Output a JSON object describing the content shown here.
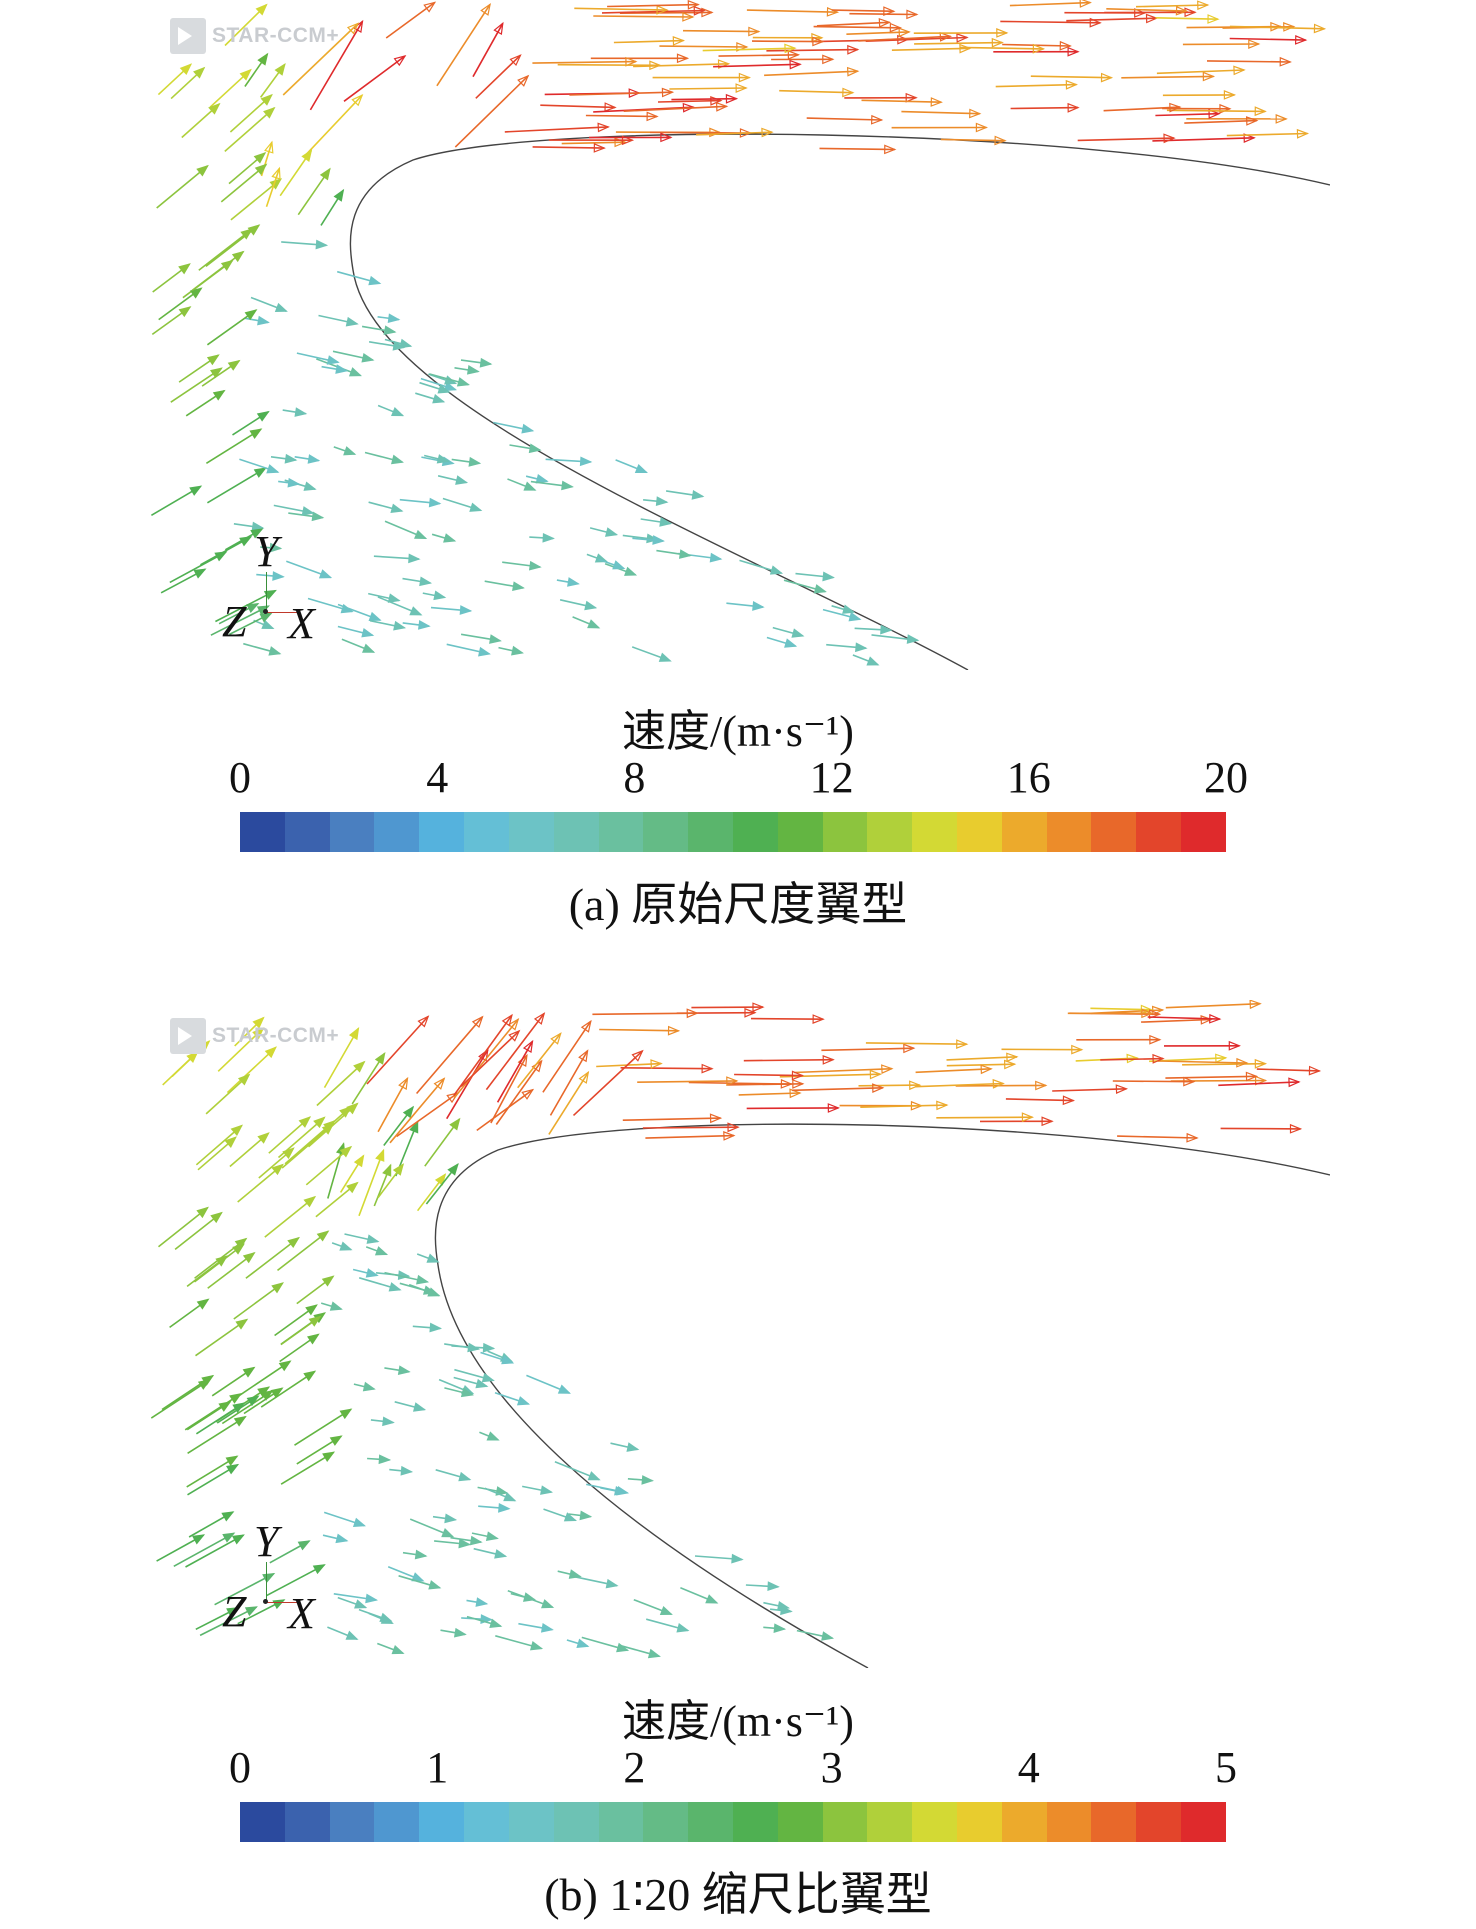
{
  "panels": [
    {
      "watermark": "STAR-CCM+",
      "axes": {
        "y": "Y",
        "z": "Z",
        "x": "X"
      },
      "colorbar": {
        "title": "速度/(m·s⁻¹)",
        "ticks": [
          "0",
          "4",
          "8",
          "12",
          "16",
          "20"
        ],
        "min": 0,
        "max": 20
      },
      "caption": "(a) 原始尺度翼型"
    },
    {
      "watermark": "STAR-CCM+",
      "axes": {
        "y": "Y",
        "z": "Z",
        "x": "X"
      },
      "colorbar": {
        "title": "速度/(m·s⁻¹)",
        "ticks": [
          "0",
          "1",
          "2",
          "3",
          "4",
          "5"
        ],
        "min": 0,
        "max": 5
      },
      "caption": "(b) 1∶20 缩尺比翼型"
    }
  ],
  "colormap": [
    "#2b4a9e",
    "#3b62ae",
    "#4a7fc0",
    "#4f97d0",
    "#55b2dd",
    "#64bfd6",
    "#6cc3c6",
    "#6dc2b4",
    "#6ac09f",
    "#64bb86",
    "#5ab56c",
    "#4fb052",
    "#63b542",
    "#8cc43e",
    "#b0d03a",
    "#d3d934",
    "#e8cc2e",
    "#ecaa2c",
    "#ec8c2a",
    "#e8682a",
    "#e3452b",
    "#df2a2c"
  ]
}
